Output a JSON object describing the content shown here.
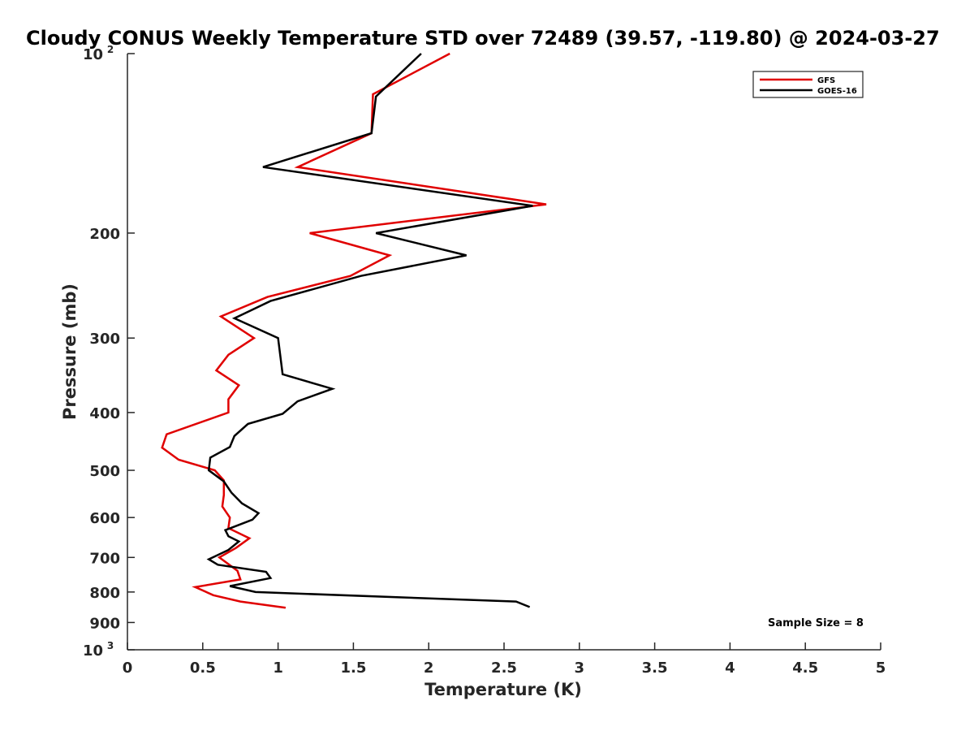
{
  "chart_data": {
    "type": "line",
    "title": "Cloudy CONUS Weekly Temperature STD over 72489 (39.57, -119.80) @ 2024-03-27",
    "xlabel": "Temperature (K)",
    "ylabel": "Pressure (mb)",
    "xlim": [
      0,
      5
    ],
    "ylim": [
      100,
      1000
    ],
    "y_scale": "log",
    "y_reversed": true,
    "grid": false,
    "legend_position": "top-right",
    "x_ticks": [
      0,
      0.5,
      1,
      1.5,
      2,
      2.5,
      3,
      3.5,
      4,
      4.5,
      5
    ],
    "x_tick_labels": [
      "0",
      "0.5",
      "1",
      "1.5",
      "2",
      "2.5",
      "3",
      "3.5",
      "4",
      "4.5",
      "5"
    ],
    "y_ticks": [
      200,
      300,
      400,
      500,
      600,
      700,
      800,
      900
    ],
    "y_tick_labels": [
      "200",
      "300",
      "400",
      "500",
      "600",
      "700",
      "800",
      "900"
    ],
    "y_end_labels": [
      {
        "value": 100,
        "base": "10",
        "exp": "2"
      },
      {
        "value": 1000,
        "base": "10",
        "exp": "3"
      }
    ],
    "series": [
      {
        "name": "GFS",
        "color": "#e00000",
        "points": [
          {
            "x": 2.14,
            "y": 100
          },
          {
            "x": 1.63,
            "y": 117
          },
          {
            "x": 1.62,
            "y": 136
          },
          {
            "x": 1.13,
            "y": 155
          },
          {
            "x": 2.78,
            "y": 179
          },
          {
            "x": 1.21,
            "y": 200
          },
          {
            "x": 1.74,
            "y": 218
          },
          {
            "x": 1.48,
            "y": 236
          },
          {
            "x": 0.93,
            "y": 256
          },
          {
            "x": 0.62,
            "y": 276
          },
          {
            "x": 0.84,
            "y": 300
          },
          {
            "x": 0.67,
            "y": 320
          },
          {
            "x": 0.59,
            "y": 340
          },
          {
            "x": 0.74,
            "y": 360
          },
          {
            "x": 0.67,
            "y": 380
          },
          {
            "x": 0.67,
            "y": 400
          },
          {
            "x": 0.26,
            "y": 435
          },
          {
            "x": 0.23,
            "y": 458
          },
          {
            "x": 0.34,
            "y": 480
          },
          {
            "x": 0.58,
            "y": 500
          },
          {
            "x": 0.64,
            "y": 520
          },
          {
            "x": 0.64,
            "y": 550
          },
          {
            "x": 0.63,
            "y": 575
          },
          {
            "x": 0.68,
            "y": 600
          },
          {
            "x": 0.67,
            "y": 625
          },
          {
            "x": 0.81,
            "y": 650
          },
          {
            "x": 0.72,
            "y": 675
          },
          {
            "x": 0.61,
            "y": 700
          },
          {
            "x": 0.73,
            "y": 737
          },
          {
            "x": 0.75,
            "y": 762
          },
          {
            "x": 0.45,
            "y": 785
          },
          {
            "x": 0.57,
            "y": 810
          },
          {
            "x": 0.75,
            "y": 830
          },
          {
            "x": 1.05,
            "y": 850
          }
        ]
      },
      {
        "name": "GOES-16",
        "color": "#000000",
        "points": [
          {
            "x": 1.95,
            "y": 100
          },
          {
            "x": 1.65,
            "y": 118
          },
          {
            "x": 1.62,
            "y": 136
          },
          {
            "x": 0.9,
            "y": 155
          },
          {
            "x": 2.69,
            "y": 180
          },
          {
            "x": 1.65,
            "y": 200
          },
          {
            "x": 2.25,
            "y": 218
          },
          {
            "x": 1.55,
            "y": 236
          },
          {
            "x": 0.95,
            "y": 260
          },
          {
            "x": 0.71,
            "y": 278
          },
          {
            "x": 1.0,
            "y": 300
          },
          {
            "x": 1.03,
            "y": 345
          },
          {
            "x": 1.36,
            "y": 365
          },
          {
            "x": 1.13,
            "y": 383
          },
          {
            "x": 1.03,
            "y": 402
          },
          {
            "x": 0.8,
            "y": 418
          },
          {
            "x": 0.71,
            "y": 438
          },
          {
            "x": 0.68,
            "y": 457
          },
          {
            "x": 0.55,
            "y": 476
          },
          {
            "x": 0.54,
            "y": 500
          },
          {
            "x": 0.64,
            "y": 522
          },
          {
            "x": 0.69,
            "y": 545
          },
          {
            "x": 0.76,
            "y": 568
          },
          {
            "x": 0.87,
            "y": 590
          },
          {
            "x": 0.83,
            "y": 605
          },
          {
            "x": 0.65,
            "y": 630
          },
          {
            "x": 0.67,
            "y": 645
          },
          {
            "x": 0.74,
            "y": 658
          },
          {
            "x": 0.67,
            "y": 680
          },
          {
            "x": 0.54,
            "y": 705
          },
          {
            "x": 0.6,
            "y": 720
          },
          {
            "x": 0.92,
            "y": 740
          },
          {
            "x": 0.95,
            "y": 758
          },
          {
            "x": 0.68,
            "y": 782
          },
          {
            "x": 0.85,
            "y": 800
          },
          {
            "x": 2.58,
            "y": 830
          },
          {
            "x": 2.67,
            "y": 848
          }
        ]
      }
    ],
    "annotation": "Sample Size = 8"
  }
}
